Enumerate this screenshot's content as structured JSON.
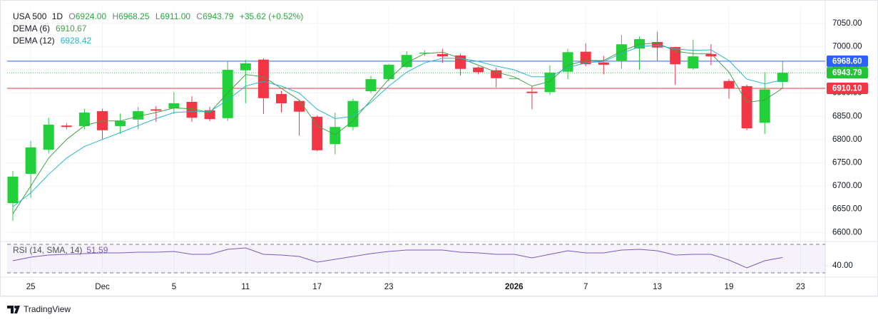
{
  "chart_data": {
    "type": "candlestick",
    "header": {
      "symbol": "USA 500",
      "interval": "1D",
      "ohlc": [
        {
          "label": "O",
          "value": "6924.00"
        },
        {
          "label": "H",
          "value": "6968.25"
        },
        {
          "label": "L",
          "value": "6911.00"
        },
        {
          "label": "C",
          "value": "6943.79"
        }
      ],
      "change": "+35.62 (+0.52%)"
    },
    "categories": [
      null,
      "25",
      null,
      null,
      null,
      "Dec",
      null,
      null,
      null,
      "5",
      null,
      null,
      null,
      "11",
      null,
      null,
      null,
      "17",
      null,
      null,
      null,
      "23",
      null,
      null,
      null,
      null,
      null,
      null,
      "2026",
      null,
      null,
      null,
      "7",
      null,
      null,
      null,
      "13",
      null,
      null,
      null,
      "19",
      null,
      null,
      null,
      "23"
    ],
    "open": [
      6663,
      6726,
      6778,
      6830,
      6829,
      6861,
      6829,
      6843,
      6865,
      6867,
      6881,
      6863,
      6846,
      6949,
      6972,
      6898,
      6883,
      6849,
      6790,
      6827,
      6904,
      6930,
      6956,
      6985,
      6984,
      6981,
      6955,
      6949,
      6932,
      6903,
      6902,
      6946,
      6989,
      6966,
      6970,
      6996,
      7010,
      6999,
      6953,
      6984,
      6926,
      6915,
      6836,
      6924,
      null
    ],
    "high": [
      6732,
      6797,
      6847,
      6835,
      6866,
      6866,
      6856,
      6870,
      6872,
      6902,
      6893,
      6870,
      6968,
      6972,
      6975,
      6905,
      6885,
      6852,
      6858,
      6888,
      6937,
      6963,
      6990,
      6992,
      6995,
      6985,
      6958,
      6955,
      6932,
      6915,
      6960,
      6995,
      7007,
      6980,
      7025,
      7022,
      7032,
      7000,
      7015,
      7005,
      6930,
      6918,
      6945,
      6968.25,
      null
    ],
    "low": [
      6625,
      6674,
      6770,
      6822,
      6822,
      6800,
      6812,
      6822,
      6838,
      6855,
      6838,
      6840,
      6840,
      6878,
      6855,
      6858,
      6808,
      6775,
      6768,
      6820,
      6900,
      6925,
      6953,
      6980,
      6965,
      6938,
      6940,
      6912,
      6932,
      6865,
      6896,
      6930,
      6958,
      6940,
      6952,
      6950,
      6970,
      6918,
      6950,
      6960,
      6888,
      6820,
      6812,
      6911,
      null
    ],
    "close": [
      6720,
      6783,
      6832,
      6827,
      6858,
      6820,
      6840,
      6861,
      6862,
      6878,
      6847,
      6844,
      6950,
      6964,
      6889,
      6878,
      6860,
      6777,
      6827,
      6883,
      6930,
      6961,
      6982,
      6987,
      6979,
      6952,
      6945,
      6932,
      6932,
      6900,
      6944,
      6988,
      6962,
      6961,
      7005,
      7016,
      6998,
      6962,
      6979,
      6979,
      6910,
      6824,
      6908,
      6943.79,
      null
    ],
    "up_color": "#22d13a",
    "down_color": "#f23645",
    "series": [
      {
        "name": "DEMA (6)",
        "value_label": "6910.67",
        "color": "#43a047",
        "values": [
          6640,
          6700,
          6760,
          6800,
          6830,
          6840,
          6840,
          6850,
          6858,
          6868,
          6866,
          6858,
          6900,
          6940,
          6935,
          6910,
          6885,
          6830,
          6810,
          6840,
          6885,
          6930,
          6965,
          6985,
          6988,
          6975,
          6960,
          6945,
          6935,
          6915,
          6925,
          6960,
          6970,
          6970,
          6990,
          7005,
          7008,
          6990,
          6985,
          6985,
          6945,
          6880,
          6885,
          6910.67,
          null
        ]
      },
      {
        "name": "DEMA (12)",
        "value_label": "6928.42",
        "color": "#26b5d1",
        "values": [
          6655,
          6685,
          6725,
          6760,
          6785,
          6800,
          6815,
          6830,
          6845,
          6858,
          6860,
          6860,
          6885,
          6915,
          6925,
          6915,
          6900,
          6865,
          6845,
          6850,
          6880,
          6915,
          6945,
          6965,
          6975,
          6975,
          6968,
          6958,
          6950,
          6935,
          6935,
          6955,
          6965,
          6968,
          6985,
          7000,
          7003,
          6995,
          6992,
          6993,
          6970,
          6930,
          6920,
          6928.42,
          null
        ]
      }
    ],
    "ylim": [
      6582,
      7085
    ],
    "yticks": [
      {
        "value": 7050,
        "label": "7050.00"
      },
      {
        "value": 7000,
        "label": "7000.00"
      },
      {
        "value": 6950,
        "label": "6950.00"
      },
      {
        "value": 6900,
        "label": "6900.00"
      },
      {
        "value": 6850,
        "label": "6850.00"
      },
      {
        "value": 6800,
        "label": "6800.00"
      },
      {
        "value": 6750,
        "label": "6750.00"
      },
      {
        "value": 6700,
        "label": "6700.00"
      },
      {
        "value": 6650,
        "label": "6650.00"
      },
      {
        "value": 6600,
        "label": "6600.00"
      }
    ],
    "price_lines": [
      {
        "value": 6968.6,
        "label": "6968.60",
        "color": "#2962ff",
        "style": "solid"
      },
      {
        "value": 6943.79,
        "label": "6943.79",
        "color": "#22c436",
        "style": "dotted"
      },
      {
        "value": 6910.1,
        "label": "6910.10",
        "color": "#f23645",
        "style": "solid"
      }
    ],
    "rsi": {
      "name": "RSI (14, SMA, 14)",
      "value_label": "51.59",
      "color": "#7e57c2",
      "values": [
        47,
        52,
        55,
        56,
        57,
        58,
        58,
        59,
        59,
        60,
        56,
        56,
        63,
        65,
        56,
        55,
        53,
        45,
        49,
        53,
        57,
        60,
        62,
        62,
        62,
        59,
        58,
        56,
        56,
        51,
        56,
        61,
        58,
        58,
        62,
        63,
        61,
        55,
        56,
        56,
        48,
        37,
        47,
        51.59,
        null
      ],
      "ylim": [
        25,
        73
      ],
      "yticks": [
        {
          "value": 40,
          "label": "40.00"
        }
      ],
      "bands": [
        70,
        30
      ]
    },
    "grid": true,
    "brand": "TradingView"
  }
}
